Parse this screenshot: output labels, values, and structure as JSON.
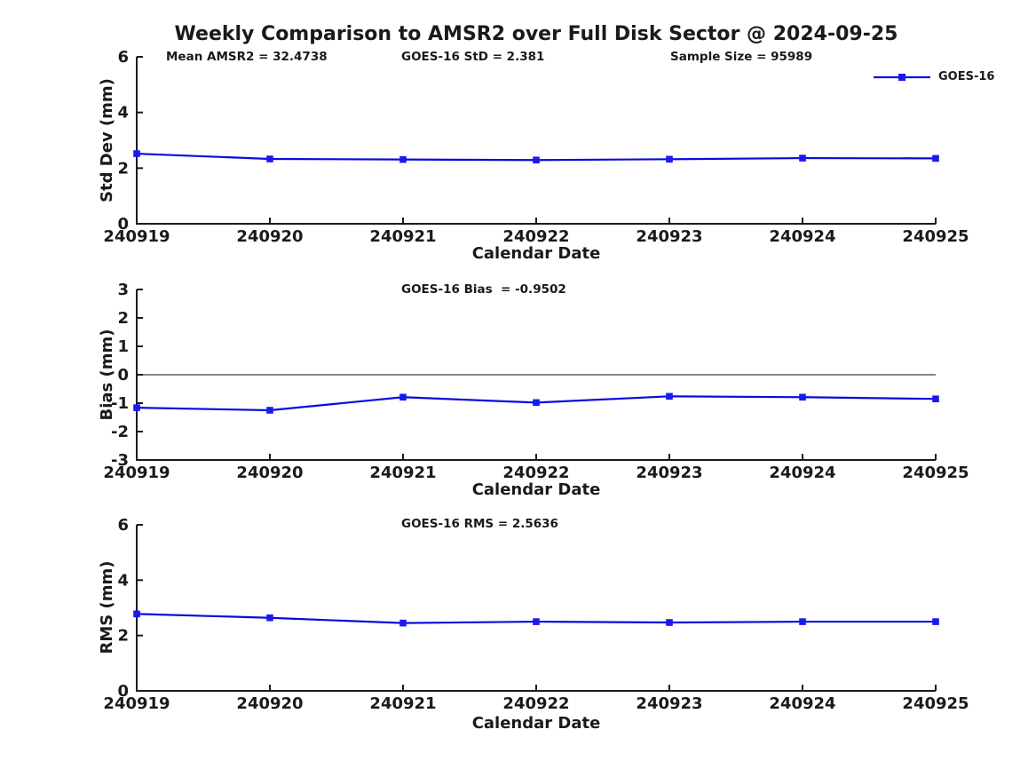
{
  "title": "Weekly Comparison to AMSR2 over Full Disk Sector @ 2024-09-25",
  "colors": {
    "line": "#0a0ae0",
    "marker": "#1a1aee",
    "axis": "#1a1a1a",
    "zero_line": "#606060",
    "text": "#1a1a1a"
  },
  "legend": {
    "label": "GOES-16"
  },
  "chart_data": [
    {
      "type": "line",
      "ylabel": "Std Dev (mm)",
      "xlabel": "Calendar Date",
      "categories": [
        "240919",
        "240920",
        "240921",
        "240922",
        "240923",
        "240924",
        "240925"
      ],
      "series": [
        {
          "name": "GOES-16",
          "values": [
            2.52,
            2.33,
            2.31,
            2.29,
            2.32,
            2.36,
            2.35
          ]
        }
      ],
      "ylim": [
        0,
        6
      ],
      "yticks": [
        0,
        2,
        4,
        6
      ],
      "zero_line": false,
      "grid": false,
      "legend_position": "top-right",
      "annotations": [
        "Mean AMSR2 = 32.4738",
        "GOES-16 StD = 2.381",
        "Sample Size = 95989"
      ]
    },
    {
      "type": "line",
      "ylabel": "Bias (mm)",
      "xlabel": "Calendar Date",
      "categories": [
        "240919",
        "240920",
        "240921",
        "240922",
        "240923",
        "240924",
        "240925"
      ],
      "series": [
        {
          "name": "GOES-16",
          "values": [
            -1.16,
            -1.25,
            -0.79,
            -0.98,
            -0.76,
            -0.79,
            -0.85
          ]
        }
      ],
      "ylim": [
        -3,
        3
      ],
      "yticks": [
        -3,
        -2,
        -1,
        0,
        1,
        2,
        3
      ],
      "zero_line": true,
      "grid": false,
      "legend_position": "none",
      "annotations": [
        "GOES-16 Bias  = -0.9502"
      ]
    },
    {
      "type": "line",
      "ylabel": "RMS (mm)",
      "xlabel": "Calendar Date",
      "categories": [
        "240919",
        "240920",
        "240921",
        "240922",
        "240923",
        "240924",
        "240925"
      ],
      "series": [
        {
          "name": "GOES-16",
          "values": [
            2.78,
            2.64,
            2.45,
            2.5,
            2.47,
            2.5,
            2.5
          ]
        }
      ],
      "ylim": [
        0,
        6
      ],
      "yticks": [
        0,
        2,
        4,
        6
      ],
      "zero_line": false,
      "grid": false,
      "legend_position": "none",
      "annotations": [
        "GOES-16 RMS = 2.5636"
      ]
    }
  ]
}
